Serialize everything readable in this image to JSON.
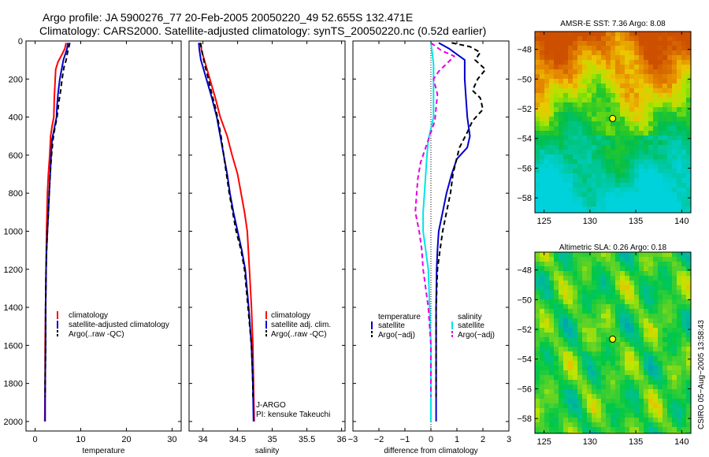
{
  "title": {
    "line1": "Argo profile: JA 5900276_77 20-Feb-2005 20050220_49 52.655S 132.471E",
    "line2": "Climatology: CARS2000. Satellite-adjusted climatology: synTS_20050220.nc (0.52d earlier)"
  },
  "colors": {
    "climatology": "#ff0000",
    "satellite": "#0000cc",
    "argo": "#000000",
    "salinity_satellite": "#00e5e5",
    "salinity_argo": "#e600e6",
    "point_marker": "#ffff00"
  },
  "chart_data": [
    {
      "id": "temperature",
      "type": "line",
      "xlabel": "temperature",
      "ylabel": "",
      "xlim": [
        -2,
        32
      ],
      "ylim": [
        2050,
        0
      ],
      "xticks": [
        0,
        10,
        20,
        30
      ],
      "xtick_labels": [
        "0",
        "10",
        "20",
        "30"
      ],
      "yticks": [
        0,
        200,
        400,
        600,
        800,
        1000,
        1200,
        1400,
        1600,
        1800,
        2000
      ],
      "ytick_labels": [
        "0",
        "200",
        "400",
        "600",
        "800",
        "1000",
        "1200",
        "1400",
        "1600",
        "1800",
        "2000"
      ],
      "legend": [
        "climatology",
        "satellite-adjusted climatology",
        "Argo(..raw -QC)"
      ],
      "series": [
        {
          "name": "climatology",
          "color": "#ff0000",
          "dash": false,
          "points": [
            [
              6.8,
              10
            ],
            [
              6.5,
              40
            ],
            [
              5.9,
              70
            ],
            [
              5.0,
              110
            ],
            [
              4.5,
              150
            ],
            [
              4.4,
              200
            ],
            [
              4.2,
              300
            ],
            [
              4.1,
              400
            ],
            [
              3.7,
              450
            ],
            [
              3.4,
              500
            ],
            [
              3.2,
              600
            ],
            [
              2.9,
              700
            ],
            [
              2.7,
              800
            ],
            [
              2.6,
              900
            ],
            [
              2.5,
              1000
            ],
            [
              2.4,
              1200
            ],
            [
              2.3,
              1400
            ],
            [
              2.2,
              1600
            ],
            [
              2.2,
              1800
            ],
            [
              2.1,
              2000
            ]
          ]
        },
        {
          "name": "satellite-adjusted climatology",
          "color": "#0000cc",
          "dash": false,
          "points": [
            [
              7.2,
              10
            ],
            [
              7.0,
              40
            ],
            [
              6.6,
              70
            ],
            [
              6.2,
              100
            ],
            [
              5.8,
              150
            ],
            [
              5.4,
              200
            ],
            [
              5.0,
              280
            ],
            [
              4.8,
              340
            ],
            [
              4.7,
              400
            ],
            [
              4.2,
              460
            ],
            [
              3.7,
              520
            ],
            [
              3.5,
              600
            ],
            [
              3.3,
              700
            ],
            [
              3.1,
              800
            ],
            [
              2.9,
              900
            ],
            [
              2.7,
              1000
            ],
            [
              2.5,
              1100
            ],
            [
              2.4,
              1200
            ],
            [
              2.3,
              1400
            ],
            [
              2.3,
              1600
            ],
            [
              2.2,
              1800
            ],
            [
              2.2,
              2000
            ]
          ]
        },
        {
          "name": "Argo(..raw -QC)",
          "color": "#000000",
          "dash": true,
          "points": [
            [
              7.6,
              10
            ],
            [
              7.4,
              30
            ],
            [
              7.1,
              60
            ],
            [
              6.8,
              100
            ],
            [
              6.3,
              140
            ],
            [
              5.9,
              200
            ],
            [
              5.6,
              260
            ],
            [
              5.2,
              320
            ],
            [
              4.8,
              400
            ],
            [
              4.3,
              460
            ],
            [
              3.9,
              520
            ],
            [
              3.6,
              600
            ],
            [
              3.3,
              700
            ],
            [
              3.1,
              800
            ],
            [
              2.9,
              900
            ],
            [
              2.7,
              1000
            ],
            [
              2.5,
              1100
            ],
            [
              2.4,
              1200
            ],
            [
              2.3,
              1400
            ],
            [
              2.3,
              1600
            ],
            [
              2.2,
              1800
            ],
            [
              2.2,
              1870
            ]
          ]
        }
      ]
    },
    {
      "id": "salinity",
      "type": "line",
      "xlabel": "salinity",
      "ylabel": "",
      "xlim": [
        33.8,
        36.05
      ],
      "ylim": [
        2050,
        0
      ],
      "xticks": [
        34,
        34.5,
        35,
        35.5,
        36
      ],
      "xtick_labels": [
        "34",
        "34.5",
        "35",
        "35.5",
        "36"
      ],
      "yticks": [
        0,
        200,
        400,
        600,
        800,
        1000,
        1200,
        1400,
        1600,
        1800,
        2000
      ],
      "legend": [
        "climatology",
        "satellite adj. clim.",
        "Argo(..raw -QC)"
      ],
      "annotations": [
        "J-ARGO",
        "PI: kensuke Takeuchi"
      ],
      "series": [
        {
          "name": "climatology",
          "color": "#ff0000",
          "dash": false,
          "points": [
            [
              33.97,
              10
            ],
            [
              33.98,
              50
            ],
            [
              34.02,
              100
            ],
            [
              34.1,
              200
            ],
            [
              34.18,
              300
            ],
            [
              34.25,
              400
            ],
            [
              34.35,
              500
            ],
            [
              34.42,
              600
            ],
            [
              34.5,
              700
            ],
            [
              34.55,
              800
            ],
            [
              34.6,
              900
            ],
            [
              34.64,
              1000
            ],
            [
              34.67,
              1200
            ],
            [
              34.7,
              1400
            ],
            [
              34.72,
              1600
            ],
            [
              34.73,
              1800
            ],
            [
              34.74,
              2000
            ]
          ]
        },
        {
          "name": "satellite adj. clim.",
          "color": "#0000cc",
          "dash": false,
          "points": [
            [
              33.94,
              10
            ],
            [
              33.95,
              50
            ],
            [
              33.97,
              100
            ],
            [
              34.05,
              200
            ],
            [
              34.13,
              300
            ],
            [
              34.2,
              400
            ],
            [
              34.25,
              500
            ],
            [
              34.3,
              600
            ],
            [
              34.35,
              700
            ],
            [
              34.39,
              800
            ],
            [
              34.44,
              900
            ],
            [
              34.5,
              1000
            ],
            [
              34.56,
              1100
            ],
            [
              34.61,
              1200
            ],
            [
              34.66,
              1400
            ],
            [
              34.7,
              1600
            ],
            [
              34.72,
              1800
            ],
            [
              34.73,
              2000
            ]
          ]
        },
        {
          "name": "Argo(..raw -QC)",
          "color": "#000000",
          "dash": true,
          "points": [
            [
              33.96,
              10
            ],
            [
              33.98,
              40
            ],
            [
              34.0,
              80
            ],
            [
              34.03,
              130
            ],
            [
              34.08,
              200
            ],
            [
              34.13,
              280
            ],
            [
              34.18,
              350
            ],
            [
              34.22,
              420
            ],
            [
              34.26,
              500
            ],
            [
              34.3,
              600
            ],
            [
              34.34,
              700
            ],
            [
              34.38,
              800
            ],
            [
              34.43,
              900
            ],
            [
              34.48,
              1000
            ],
            [
              34.55,
              1100
            ],
            [
              34.6,
              1200
            ],
            [
              34.65,
              1400
            ],
            [
              34.7,
              1600
            ],
            [
              34.72,
              1800
            ],
            [
              34.72,
              1870
            ]
          ]
        }
      ]
    },
    {
      "id": "difference",
      "type": "line",
      "xlabel": "difference from climatology",
      "ylabel": "",
      "xlim": [
        -3,
        3
      ],
      "ylim": [
        2050,
        0
      ],
      "xticks": [
        -3,
        -2,
        -1,
        0,
        1,
        2,
        3
      ],
      "xtick_labels": [
        "−3",
        "−2",
        "−1",
        "0",
        "1",
        "2",
        "3"
      ],
      "yticks": [
        0,
        200,
        400,
        600,
        800,
        1000,
        1200,
        1400,
        1600,
        1800,
        2000
      ],
      "legend_left_title": "temperature",
      "legend_left": [
        "satellite",
        "Argo(−adj)"
      ],
      "legend_right_title": "salinity",
      "legend_right": [
        "satellite",
        "Argo(−adj)"
      ],
      "series": [
        {
          "name": "temperature satellite",
          "color": "#0000cc",
          "dash": false,
          "points": [
            [
              0.3,
              10
            ],
            [
              0.7,
              40
            ],
            [
              1.0,
              70
            ],
            [
              1.3,
              100
            ],
            [
              1.3,
              200
            ],
            [
              1.35,
              300
            ],
            [
              1.4,
              400
            ],
            [
              1.5,
              500
            ],
            [
              1.4,
              560
            ],
            [
              1.0,
              620
            ],
            [
              0.8,
              700
            ],
            [
              0.6,
              800
            ],
            [
              0.45,
              900
            ],
            [
              0.3,
              1000
            ],
            [
              0.25,
              1100
            ],
            [
              0.22,
              1200
            ],
            [
              0.2,
              1400
            ],
            [
              0.2,
              1600
            ],
            [
              0.2,
              1800
            ],
            [
              0.2,
              2000
            ]
          ]
        },
        {
          "name": "temperature Argo(-adj)",
          "color": "#000000",
          "dash": true,
          "points": [
            [
              0.8,
              10
            ],
            [
              1.5,
              30
            ],
            [
              1.9,
              60
            ],
            [
              1.7,
              100
            ],
            [
              2.1,
              150
            ],
            [
              1.8,
              200
            ],
            [
              1.6,
              260
            ],
            [
              1.9,
              300
            ],
            [
              2.0,
              360
            ],
            [
              1.6,
              420
            ],
            [
              1.4,
              480
            ],
            [
              1.1,
              560
            ],
            [
              0.95,
              640
            ],
            [
              0.85,
              700
            ],
            [
              0.75,
              800
            ],
            [
              0.6,
              900
            ],
            [
              0.45,
              1000
            ],
            [
              0.35,
              1100
            ],
            [
              0.25,
              1200
            ],
            [
              0.2,
              1400
            ],
            [
              0.2,
              1600
            ],
            [
              0.2,
              1800
            ],
            [
              0.2,
              1870
            ]
          ]
        },
        {
          "name": "salinity satellite",
          "color": "#00e5e5",
          "dash": false,
          "points": [
            [
              0.0,
              10
            ],
            [
              0.05,
              60
            ],
            [
              0.1,
              120
            ],
            [
              0.1,
              200
            ],
            [
              0.1,
              300
            ],
            [
              0.1,
              400
            ],
            [
              0.0,
              460
            ],
            [
              -0.1,
              520
            ],
            [
              -0.15,
              600
            ],
            [
              -0.2,
              700
            ],
            [
              -0.25,
              800
            ],
            [
              -0.3,
              900
            ],
            [
              -0.3,
              1000
            ],
            [
              -0.2,
              1100
            ],
            [
              -0.1,
              1200
            ],
            [
              -0.05,
              1400
            ],
            [
              0.0,
              1600
            ],
            [
              0.0,
              1800
            ],
            [
              0.0,
              2000
            ]
          ]
        },
        {
          "name": "salinity Argo(-adj)",
          "color": "#e600e6",
          "dash": true,
          "points": [
            [
              0.0,
              10
            ],
            [
              0.4,
              50
            ],
            [
              0.9,
              80
            ],
            [
              0.6,
              120
            ],
            [
              0.3,
              160
            ],
            [
              0.1,
              200
            ],
            [
              0.25,
              280
            ],
            [
              0.2,
              350
            ],
            [
              0.15,
              420
            ],
            [
              0.0,
              480
            ],
            [
              -0.2,
              560
            ],
            [
              -0.4,
              640
            ],
            [
              -0.5,
              720
            ],
            [
              -0.55,
              800
            ],
            [
              -0.6,
              900
            ],
            [
              -0.45,
              1000
            ],
            [
              -0.35,
              1100
            ],
            [
              -0.3,
              1200
            ],
            [
              -0.2,
              1300
            ],
            [
              -0.1,
              1400
            ],
            [
              0.0,
              1600
            ],
            [
              0.0,
              1800
            ],
            [
              0.0,
              1870
            ]
          ]
        }
      ]
    },
    {
      "id": "sst-map",
      "type": "heatmap",
      "title": "AMSR-E SST: 7.36 Argo: 8.08",
      "xlim": [
        124,
        141
      ],
      "ylim": [
        -59,
        -46.8
      ],
      "xticks": [
        125,
        130,
        135,
        140
      ],
      "yticks": [
        -48,
        -50,
        -52,
        -54,
        -56,
        -58
      ],
      "ytick_labels": [
        "−48",
        "−50",
        "−52",
        "−54",
        "−56",
        "−58"
      ],
      "marker": {
        "lon": 132.471,
        "lat": -52.655
      }
    },
    {
      "id": "sla-map",
      "type": "heatmap",
      "title": "Altimetric SLA: 0.26 Argo: 0.18",
      "xlim": [
        124,
        141
      ],
      "ylim": [
        -59,
        -46.8
      ],
      "xticks": [
        125,
        130,
        135,
        140
      ],
      "yticks": [
        -48,
        -50,
        -52,
        -54,
        -56,
        -58
      ],
      "ytick_labels": [
        "−48",
        "−50",
        "−52",
        "−54",
        "−56",
        "−58"
      ],
      "marker": {
        "lon": 132.471,
        "lat": -52.655
      },
      "side_label": "CSIRO 05−Aug−2005 13:58:43"
    }
  ]
}
